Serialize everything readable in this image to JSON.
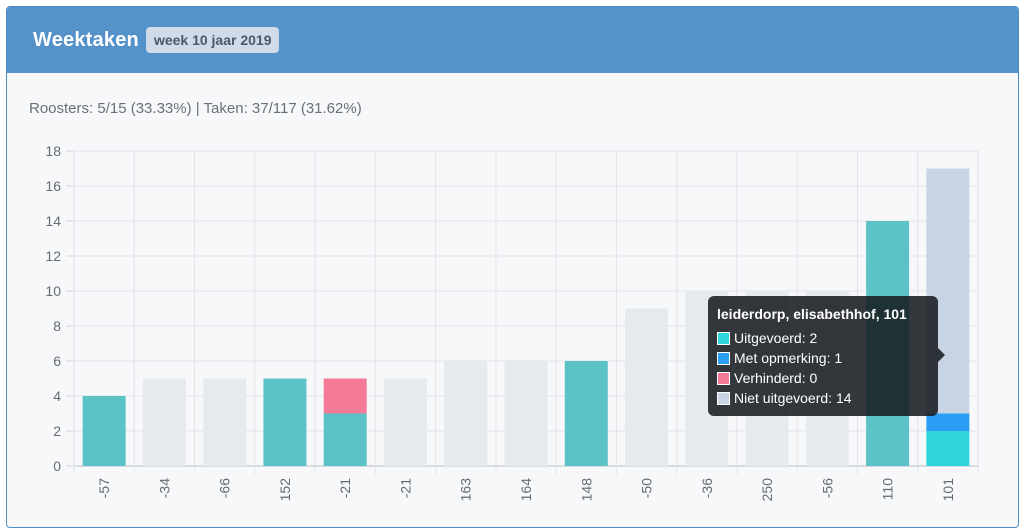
{
  "header": {
    "title": "Weektaken",
    "badge": "week 10 jaar 2019"
  },
  "stats_text": "Roosters: 5/15 (33.33%) | Taken: 37/117 (31.62%)",
  "colors": {
    "uitgevoerd": "#5bc2c7",
    "uitgevoerd_highlight": "#2ed6dc",
    "met_opmerking": "#2a9df4",
    "verhinderd": "#f47a97",
    "niet_uitgevoerd": "#e6e9ee",
    "niet_uitgevoerd_highlight": "#c8d4e4"
  },
  "chart_data": {
    "type": "bar",
    "stacked": true,
    "categories": [
      "-57",
      "-34",
      "-66",
      "152",
      "-21",
      "-21",
      "163",
      "164",
      "148",
      "-50",
      "-36",
      "250",
      "-56",
      "110",
      "101"
    ],
    "series": [
      {
        "name": "Uitgevoerd",
        "values": [
          4,
          0,
          0,
          5,
          3,
          0,
          0,
          0,
          6,
          0,
          0,
          0,
          0,
          14,
          2
        ]
      },
      {
        "name": "Met opmerking",
        "values": [
          0,
          0,
          0,
          0,
          0,
          0,
          0,
          0,
          0,
          0,
          0,
          0,
          0,
          0,
          1
        ]
      },
      {
        "name": "Verhinderd",
        "values": [
          0,
          0,
          0,
          0,
          2,
          0,
          0,
          0,
          0,
          0,
          0,
          0,
          0,
          0,
          0
        ]
      },
      {
        "name": "Niet uitgevoerd",
        "values": [
          0,
          5,
          5,
          0,
          0,
          5,
          6,
          6,
          0,
          9,
          10,
          10,
          10,
          0,
          14
        ]
      }
    ],
    "yticks": [
      0,
      2,
      4,
      6,
      8,
      10,
      12,
      14,
      16,
      18
    ],
    "ylim": [
      0,
      18
    ],
    "grid": true,
    "highlighted_index": 14
  },
  "tooltip": {
    "title": "leiderdorp, elisabethhof, 101",
    "rows": [
      {
        "label": "Uitgevoerd: 2",
        "color": "#2ed6dc"
      },
      {
        "label": "Met opmerking: 1",
        "color": "#2a9df4"
      },
      {
        "label": "Verhinderd: 0",
        "color": "#f47a97"
      },
      {
        "label": "Niet uitgevoerd: 14",
        "color": "#c8d4e4"
      }
    ]
  }
}
